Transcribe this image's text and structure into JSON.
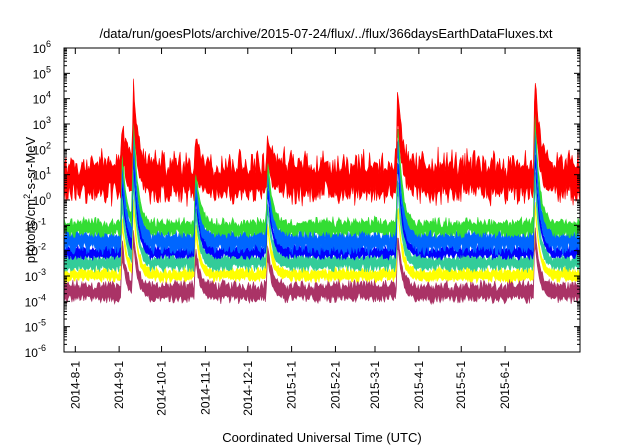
{
  "chart_data": {
    "type": "line",
    "title": "/data/run/goesPlots/archive/2015-07-24/flux/../flux/366daysEarthDataFluxes.txt",
    "xlabel": "Coordinated Universal Time (UTC)",
    "ylabel_parts": {
      "base": "protons/cm",
      "sup": "2",
      "rest": "-s-sr-MeV"
    },
    "yscale": "log",
    "ylim_exp": [
      -6,
      6
    ],
    "y_ticks": [
      {
        "base": "10",
        "exp": "-6"
      },
      {
        "base": "10",
        "exp": "-5"
      },
      {
        "base": "10",
        "exp": "-4"
      },
      {
        "base": "10",
        "exp": "-3"
      },
      {
        "base": "10",
        "exp": "-2"
      },
      {
        "base": "10",
        "exp": "-1"
      },
      {
        "base": "10",
        "exp": "0"
      },
      {
        "base": "10",
        "exp": "1"
      },
      {
        "base": "10",
        "exp": "2"
      },
      {
        "base": "10",
        "exp": "3"
      },
      {
        "base": "10",
        "exp": "4"
      },
      {
        "base": "10",
        "exp": "5"
      },
      {
        "base": "10",
        "exp": "6"
      }
    ],
    "xlim": [
      "2014-07-24",
      "2015-07-24"
    ],
    "x_ticks": [
      {
        "label": "2014-8-1",
        "date": "2014-08-01"
      },
      {
        "label": "2014-9-1",
        "date": "2014-09-01"
      },
      {
        "label": "2014-10-1",
        "date": "2014-10-01"
      },
      {
        "label": "2014-11-1",
        "date": "2014-11-01"
      },
      {
        "label": "2014-12-1",
        "date": "2014-12-01"
      },
      {
        "label": "2015-1-1",
        "date": "2015-01-01"
      },
      {
        "label": "2015-2-1",
        "date": "2015-02-01"
      },
      {
        "label": "2015-3-1",
        "date": "2015-03-01"
      },
      {
        "label": "2015-4-1",
        "date": "2015-04-01"
      },
      {
        "label": "2015-5-1",
        "date": "2015-05-01"
      },
      {
        "label": "2015-6-1",
        "date": "2015-06-01"
      }
    ],
    "grid": false,
    "legend": false,
    "series": [
      {
        "color": "#aa3366",
        "baseline": 0.0002,
        "noise_decades": 0.3
      },
      {
        "color": "#ffff00",
        "baseline": 0.001,
        "noise_decades": 0.2
      },
      {
        "color": "#33cc99",
        "baseline": 0.003,
        "noise_decades": 0.25
      },
      {
        "color": "#0000ff",
        "baseline": 0.008,
        "noise_decades": 0.2
      },
      {
        "color": "#0066ff",
        "baseline": 0.02,
        "noise_decades": 0.35
      },
      {
        "color": "#33dd33",
        "baseline": 0.07,
        "noise_decades": 0.25
      },
      {
        "color": "#ff0000",
        "baseline": 5,
        "noise_decades": 0.7
      }
    ],
    "events": [
      {
        "date": "2014-09-03",
        "peak": 300
      },
      {
        "date": "2014-09-11",
        "peak": 10000
      },
      {
        "date": "2014-10-25",
        "peak": 50
      },
      {
        "date": "2014-12-15",
        "peak": 100
      },
      {
        "date": "2015-03-17",
        "peak": 8000
      },
      {
        "date": "2015-06-22",
        "peak": 30000
      }
    ]
  }
}
